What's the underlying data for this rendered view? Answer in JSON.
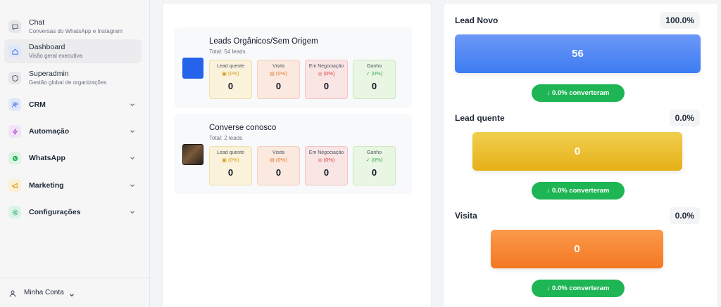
{
  "sidebar": {
    "items": [
      {
        "title": "Chat",
        "subtitle": "Conversas do WhatsApp e Instagram",
        "icon": "chat-bubble-icon"
      },
      {
        "title": "Dashboard",
        "subtitle": "Visão geral executiva",
        "icon": "home-icon",
        "active": true
      },
      {
        "title": "Superadmin",
        "subtitle": "Gestão global de organizações",
        "icon": "shield-icon"
      },
      {
        "title": "CRM",
        "icon": "users-icon"
      },
      {
        "title": "Automação",
        "icon": "lightning-icon"
      },
      {
        "title": "WhatsApp",
        "icon": "whatsapp-icon"
      },
      {
        "title": "Marketing",
        "icon": "megaphone-icon"
      },
      {
        "title": "Configurações",
        "icon": "gear-icon"
      }
    ],
    "account_label": "Minha Conta"
  },
  "lead_sources": [
    {
      "title": "Leads Orgânicos/Sem Origem",
      "total": "Total: 54 leads",
      "stages": [
        {
          "label": "Lead quente",
          "pct": "(0%)",
          "count": "0"
        },
        {
          "label": "Visita",
          "pct": "(0%)",
          "count": "0"
        },
        {
          "label": "Em Negociação",
          "pct": "(0%)",
          "count": "0"
        },
        {
          "label": "Ganho",
          "pct": "(0%)",
          "count": "0"
        }
      ]
    },
    {
      "title": "Converse conosco",
      "total": "Total: 2 leads",
      "stages": [
        {
          "label": "Lead quente",
          "pct": "(0%)",
          "count": "0"
        },
        {
          "label": "Visita",
          "pct": "(0%)",
          "count": "0"
        },
        {
          "label": "Em Negociação",
          "pct": "(0%)",
          "count": "0"
        },
        {
          "label": "Ganho",
          "pct": "(0%)",
          "count": "0"
        }
      ]
    }
  ],
  "funnel": [
    {
      "name": "Lead Novo",
      "pct": "100.0%",
      "value": "56",
      "conversion": "↓ 0.0% converteram",
      "color": "#3d7cf3"
    },
    {
      "name": "Lead quente",
      "pct": "0.0%",
      "value": "0",
      "conversion": "↓ 0.0% converteram",
      "color": "#e6b019"
    },
    {
      "name": "Visita",
      "pct": "0.0%",
      "value": "0",
      "conversion": "↓ 0.0% converteram",
      "color": "#f47722"
    }
  ],
  "colors": {
    "conversion_green": "#1eb554",
    "brand_blue": "#2563eb"
  }
}
